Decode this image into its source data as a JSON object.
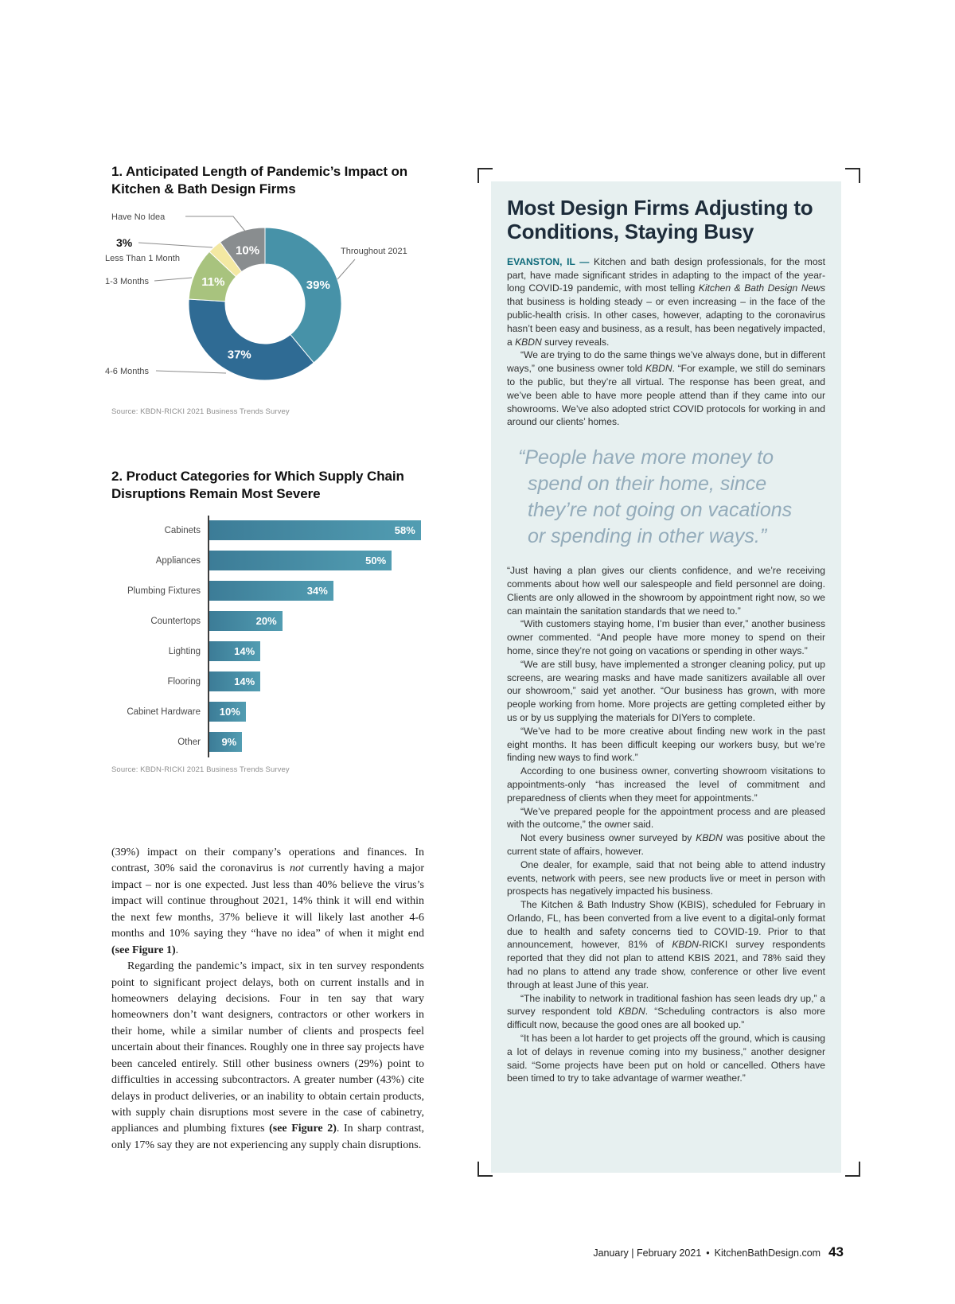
{
  "chart_data": [
    {
      "type": "pie",
      "subtype": "donut",
      "title": "1. Anticipated Length of Pandemic’s Impact on Kitchen & Bath Design Firms",
      "labels": [
        "Throughout 2021",
        "4-6 Months",
        "1-3 Months",
        "Less Than 1 Month",
        "Have No Idea"
      ],
      "values": [
        39,
        37,
        11,
        3,
        10
      ],
      "value_suffix": "%",
      "colors": [
        "#4792a8",
        "#2f6b94",
        "#a8c37e",
        "#f3e8a2",
        "#898d8f"
      ],
      "legend_position": "callout-labels",
      "source": "Source: KBDN-RICKI 2021 Business Trends Survey"
    },
    {
      "type": "bar",
      "orientation": "horizontal",
      "title": "2. Product Categories for Which Supply Chain Disruptions Remain Most Severe",
      "categories": [
        "Cabinets",
        "Appliances",
        "Plumbing Fixtures",
        "Countertops",
        "Lighting",
        "Flooring",
        "Cabinet Hardware",
        "Other"
      ],
      "values": [
        58,
        50,
        34,
        20,
        14,
        14,
        10,
        9
      ],
      "value_suffix": "%",
      "xlim": [
        0,
        60
      ],
      "grid": false,
      "bar_color_start": "#3c7c97",
      "bar_color_end": "#529db2",
      "source": "Source: KBDN-RICKI 2021 Business Trends Survey"
    }
  ],
  "left_article": {
    "paragraphs": [
      "(39%) impact on their company’s operations and finances. In contrast, 30% said the coronavirus is *not* currently having a major impact – nor is one expected. Just less than 40% believe the virus’s impact will continue throughout 2021, 14% think it will end within the next few months, 37% believe it will likely last another 4-6 months and 10% saying they “have no idea” of when it might end **(see Figure 1)**.",
      "Regarding the pandemic’s impact, six in ten survey respondents point to significant project delays, both on current installs and in homeowners delaying decisions. Four in ten say that wary homeowners don’t want designers, contractors or other workers in their home, while a similar number of clients and prospects feel uncertain about their finances. Roughly one in three say projects have been canceled entirely. Still other business owners (29%) point to difficulties in accessing subcontractors. A greater number (43%) cite delays in product deliveries, or an inability to obtain certain products, with supply chain disruptions most severe in the case of cabinetry, appliances and plumbing fixtures **(see Figure 2)**. In sharp contrast, only 17% say they are not experiencing any supply chain disruptions."
    ]
  },
  "panel": {
    "headline": "Most Design Firms Adjusting to Conditions, Staying Busy",
    "dateline": "EVANSTON, IL — ",
    "intro": "Kitchen and bath design professionals, for the most part, have made significant strides in adapting to the impact of the year-long COVID-19 pandemic, with most telling *Kitchen & Bath Design News* that business is holding steady – or even increasing – in the face of the public-health crisis. In other cases, however, adapting to the coronavirus hasn’t been easy and business, as a result, has been negatively impacted, a *KBDN* survey reveals.",
    "paragraphs_before_quote": [
      "“We are trying to do the same things we’ve always done, but in different ways,” one business owner told *KBDN*. “For example, we still do seminars to the public, but they’re all virtual. The response has been great, and we’ve been able to have more people attend than if they came into our showrooms. We’ve also adopted strict COVID protocols for working in and around our clients’ homes."
    ],
    "pull_quote": "“People have more money to spend on their home, since they’re not going on vacations or spending in other ways.”",
    "paragraphs_after_quote": [
      "“Just having a plan gives our clients confidence, and we’re receiving comments about how well our salespeople and field personnel are doing. Clients are only allowed in the showroom by appointment right now, so we can maintain the sanitation standards that we need to.”",
      "“With customers staying home, I’m busier than ever,” another business owner commented. “And people have more money to spend on their home, since they’re not going on vacations or spending in other ways.”",
      "“We are still busy, have implemented a stronger cleaning policy, put up screens, are wearing masks and have made sanitizers available all over our showroom,” said yet another. “Our business has grown, with more people working from home. More projects are getting completed either by us or by us supplying the materials for DIYers to complete.",
      "“We’ve had to be more creative about finding new work in the past eight months. It has been difficult keeping our workers busy, but we’re finding new ways to find work.”",
      "According to one business owner, converting showroom visitations to appointments-only “has increased the level of commitment and preparedness of clients when they meet for appointments.”",
      "“We’ve prepared people for the appointment process and are pleased with the outcome,” the owner said.",
      "Not every business owner surveyed by *KBDN* was positive about the current state of affairs, however.",
      "One dealer, for example, said that not being able to attend industry events, network with peers, see new products live or meet in person with prospects has negatively impacted his business.",
      "The Kitchen & Bath Industry Show (KBIS), scheduled for February in Orlando, FL, has been converted from a live event to a digital-only format due to health and safety concerns tied to COVID-19. Prior to that announcement, however, 81% of *KBDN*-RICKI survey respondents reported that they did not plan to attend KBIS 2021, and 78% said they had no plans to attend any trade show, conference or other live event through at least June of this year.",
      "“The inability to network in traditional fashion has seen leads dry up,” a survey respondent told *KBDN*. “Scheduling contractors is also more difficult now, because the good ones are all booked up.”",
      "“It has been a lot harder to get projects off the ground, which is causing a lot of delays in revenue coming into my business,” another designer said. “Some projects have been put on hold or cancelled. Others have been timed to try to take advantage of warmer weather.”"
    ]
  },
  "footer": {
    "issue_date": "January | February 2021",
    "bullet": "•",
    "website": "KitchenBathDesign.com",
    "page_number": "43"
  }
}
